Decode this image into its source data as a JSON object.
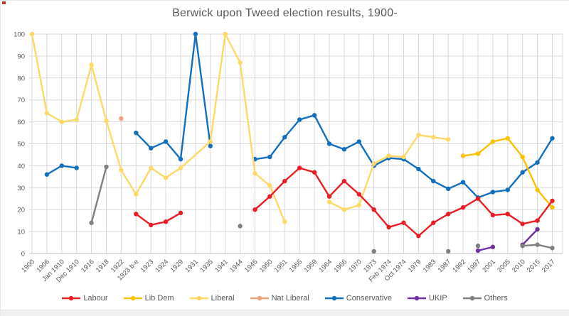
{
  "window": {
    "title_note": "embedded chart view"
  },
  "chart_data": {
    "type": "line",
    "title": "Berwick upon Tweed election results, 1900-",
    "xlabel": "",
    "ylabel": "",
    "ylim": [
      0,
      100
    ],
    "y_tick_step": 10,
    "y_ticks": [
      0,
      10,
      20,
      30,
      40,
      50,
      60,
      70,
      80,
      90,
      100
    ],
    "grid": true,
    "legend_position": "bottom",
    "categories": [
      "1900",
      "1906",
      "Jan 1910",
      "Dec 1910",
      "1916",
      "1918",
      "1922",
      "1923 b-e",
      "1923",
      "1924",
      "1929",
      "1931",
      "1935",
      "1941",
      "1944",
      "1945",
      "1950",
      "1951",
      "1955",
      "1959",
      "1964",
      "1966",
      "1970",
      "1973",
      "Feb 1974",
      "Oct 1974",
      "1979",
      "1983",
      "1987",
      "1992",
      "1997",
      "2001",
      "2005",
      "2010",
      "2015",
      "2017"
    ],
    "series": [
      {
        "name": "Labour",
        "color": "#e81e25",
        "segments": [
          [
            [
              7,
              18
            ],
            [
              8,
              13
            ],
            [
              9,
              14.5
            ],
            [
              10,
              18.5
            ]
          ],
          [
            [
              15,
              20
            ],
            [
              16,
              26
            ],
            [
              17,
              33
            ],
            [
              18,
              39
            ],
            [
              19,
              37
            ],
            [
              20,
              26
            ],
            [
              21,
              33
            ],
            [
              22,
              27
            ],
            [
              23,
              20
            ],
            [
              24,
              12
            ],
            [
              25,
              14
            ],
            [
              26,
              8
            ],
            [
              27,
              14
            ],
            [
              28,
              18
            ],
            [
              29,
              21
            ],
            [
              30,
              25
            ],
            [
              31,
              17.5
            ],
            [
              32,
              18
            ],
            [
              33,
              13.5
            ],
            [
              34,
              15
            ],
            [
              35,
              24
            ]
          ]
        ]
      },
      {
        "name": "Lib Dem",
        "color": "#ffc000",
        "segments": [
          [
            [
              29,
              44.5
            ],
            [
              30,
              45.5
            ],
            [
              31,
              51
            ],
            [
              32,
              52.5
            ],
            [
              33,
              44
            ],
            [
              34,
              29
            ],
            [
              35,
              21
            ]
          ]
        ]
      },
      {
        "name": "Liberal",
        "color": "#ffd966",
        "segments": [
          [
            [
              0,
              100
            ],
            [
              1,
              64
            ],
            [
              2,
              60
            ],
            [
              3,
              61
            ],
            [
              4,
              86
            ],
            [
              5,
              60.5
            ],
            [
              6,
              38
            ],
            [
              7,
              27
            ],
            [
              8,
              39
            ],
            [
              9,
              34.5
            ],
            [
              10,
              39
            ],
            [
              12,
              51
            ],
            [
              13,
              100
            ],
            [
              14,
              87
            ],
            [
              15,
              36.5
            ],
            [
              16,
              31
            ],
            [
              17,
              14.5
            ]
          ],
          [
            [
              20,
              23.5
            ],
            [
              21,
              20
            ],
            [
              22,
              22
            ],
            [
              23,
              41
            ],
            [
              24,
              44.5
            ],
            [
              25,
              44
            ],
            [
              26,
              54
            ],
            [
              27,
              53
            ],
            [
              28,
              52
            ]
          ]
        ]
      },
      {
        "name": "Nat Liberal",
        "color": "#f0a27e",
        "segments": [
          [
            [
              6,
              61.5
            ]
          ]
        ]
      },
      {
        "name": "Conservative",
        "color": "#116fbe",
        "segments": [
          [
            [
              1,
              36
            ],
            [
              2,
              40
            ],
            [
              3,
              39
            ]
          ],
          [
            [
              7,
              55
            ],
            [
              8,
              48
            ],
            [
              9,
              51
            ],
            [
              10,
              43
            ],
            [
              11,
              100
            ],
            [
              12,
              49
            ]
          ],
          [
            [
              15,
              43
            ],
            [
              16,
              44
            ],
            [
              17,
              53
            ],
            [
              18,
              61
            ],
            [
              19,
              63
            ],
            [
              20,
              50
            ],
            [
              21,
              47.5
            ],
            [
              22,
              51
            ],
            [
              23,
              40
            ],
            [
              24,
              43.5
            ],
            [
              25,
              43
            ],
            [
              26,
              38.5
            ],
            [
              27,
              33
            ],
            [
              28,
              29.5
            ],
            [
              29,
              32.5
            ],
            [
              30,
              25.5
            ],
            [
              31,
              28
            ],
            [
              32,
              29
            ],
            [
              33,
              37
            ],
            [
              34,
              41.5
            ],
            [
              35,
              52.5
            ]
          ]
        ]
      },
      {
        "name": "UKIP",
        "color": "#7030a0",
        "segments": [
          [
            [
              30,
              1.3
            ],
            [
              31,
              3
            ]
          ],
          [
            [
              33,
              4
            ],
            [
              34,
              11
            ]
          ]
        ]
      },
      {
        "name": "Others",
        "color": "#808080",
        "segments": [
          [
            [
              4,
              14
            ],
            [
              5,
              39.5
            ]
          ],
          [
            [
              14,
              12.5
            ]
          ],
          [
            [
              23,
              1
            ]
          ],
          [
            [
              28,
              1
            ]
          ],
          [
            [
              30,
              3.5
            ]
          ],
          [
            [
              33,
              3.5
            ],
            [
              34,
              4
            ],
            [
              35,
              2.5
            ]
          ]
        ]
      }
    ],
    "draw_order": [
      "Conservative",
      "Nat Liberal",
      "Liberal",
      "Lib Dem",
      "Labour",
      "UKIP",
      "Others"
    ],
    "colors": {
      "gridline": "#d9d9d9",
      "axis_line": "#bfbfbf",
      "text": "#595959",
      "background": "#ffffff"
    }
  }
}
